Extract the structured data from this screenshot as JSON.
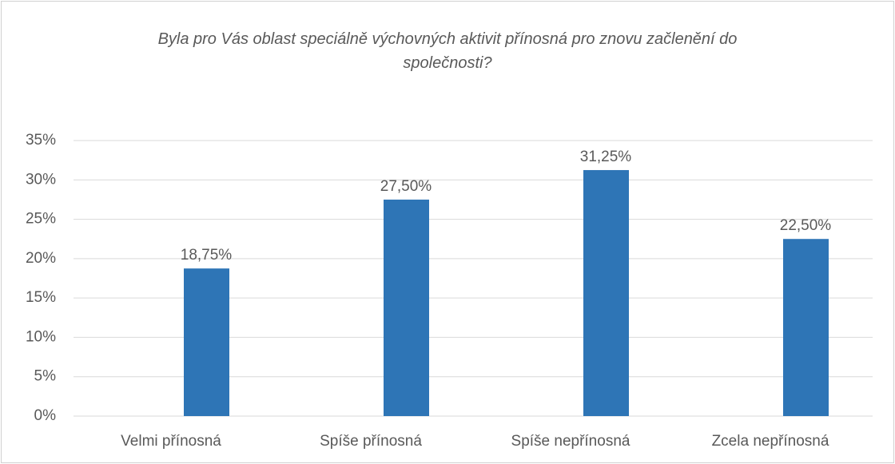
{
  "chart_data": {
    "type": "bar",
    "title": "Byla pro Vás oblast speciálně výchovných aktivit přínosná pro znovu začlenění do společnosti?",
    "categories": [
      "Velmi přínosná",
      "Spíše přínosná",
      "Spíše nepřínosná",
      "Zcela nepřínosná"
    ],
    "values": [
      18.75,
      27.5,
      31.25,
      22.5
    ],
    "value_labels": [
      "18,75%",
      "27,50%",
      "31,25%",
      "22,50%"
    ],
    "color": "#2e75b6",
    "ylim": [
      0,
      35
    ],
    "yticks": [
      {
        "value": 0,
        "label": "0%"
      },
      {
        "value": 5,
        "label": "5%"
      },
      {
        "value": 10,
        "label": "10%"
      },
      {
        "value": 15,
        "label": "15%"
      },
      {
        "value": 20,
        "label": "20%"
      },
      {
        "value": 25,
        "label": "25%"
      },
      {
        "value": 30,
        "label": "30%"
      },
      {
        "value": 35,
        "label": "35%"
      }
    ],
    "grid": true
  }
}
